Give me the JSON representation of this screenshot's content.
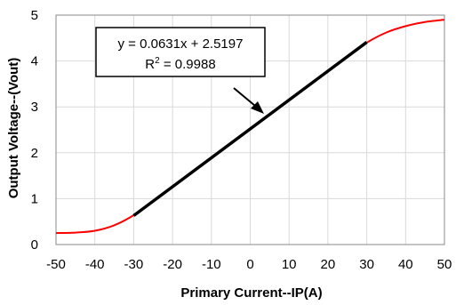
{
  "chart_data": {
    "type": "line",
    "title": "",
    "xlabel": "Primary Current--IP(A)",
    "ylabel": "Output Voltage--(Vout)",
    "xlim": [
      -50,
      50
    ],
    "ylim": [
      0,
      5
    ],
    "grid": true,
    "x_ticks": [
      "-50",
      "-40",
      "-30",
      "-20",
      "-10",
      "0",
      "10",
      "20",
      "30",
      "40",
      "50"
    ],
    "y_ticks": [
      "0",
      "1",
      "2",
      "3",
      "4",
      "5"
    ],
    "colors": {
      "measured": "#ff0000",
      "fit": "#000000",
      "grid": "#d9d9d9",
      "axis": "#888888"
    },
    "series": [
      {
        "x": [
          -50,
          -45,
          -40,
          -35,
          -30,
          -25,
          -20,
          -15,
          -10,
          -5,
          0,
          5,
          10,
          15,
          20,
          25,
          30,
          35,
          40,
          45,
          50
        ],
        "values": [
          0.25,
          0.26,
          0.3,
          0.42,
          0.64,
          0.94,
          1.25,
          1.57,
          1.88,
          2.2,
          2.52,
          2.84,
          3.15,
          3.47,
          3.78,
          4.1,
          4.4,
          4.62,
          4.76,
          4.85,
          4.9
        ]
      },
      {
        "x": [
          -30,
          30
        ],
        "values": [
          0.63,
          4.41
        ]
      }
    ],
    "annotation": {
      "equation": "y = 0.0631x + 2.5197",
      "r2_label": "R",
      "r2_sup": "2",
      "r2_value": " = 0.9988"
    }
  }
}
